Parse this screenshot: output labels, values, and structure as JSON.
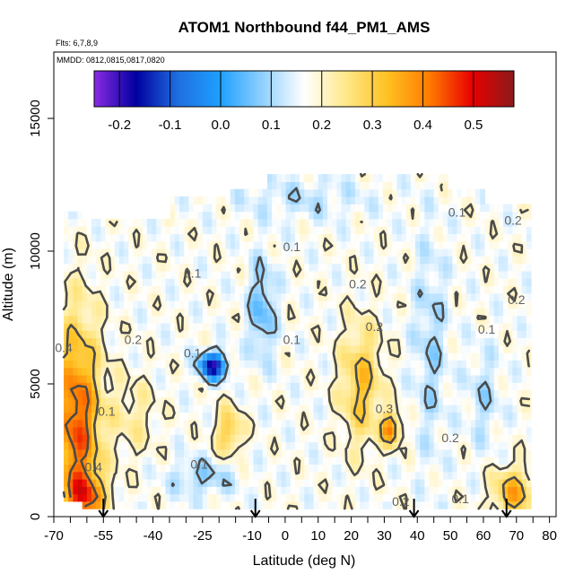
{
  "chart_data": {
    "type": "heatmap",
    "title": "ATOM1 Northbound f44_PM1_AMS",
    "flights_note": "Flts: 6,7,8,9",
    "dates_note": "MMDD: 0812,0815,0817,0820",
    "xlabel": "Latitude (deg N)",
    "ylabel": "Altitude (m)",
    "xlim": [
      -70,
      82
    ],
    "ylim": [
      0,
      17500
    ],
    "x_ticks": [
      "-70",
      "-55",
      "-40",
      "-25",
      "-10",
      "0",
      "10",
      "20",
      "30",
      "40",
      "50",
      "60",
      "70",
      "80"
    ],
    "x_tick_values": [
      -70,
      -55,
      -40,
      -25,
      -10,
      0,
      10,
      20,
      30,
      40,
      50,
      60,
      70,
      80
    ],
    "y_ticks": [
      "0",
      "5000",
      "10000",
      "15000"
    ],
    "y_tick_values": [
      0,
      5000,
      10000,
      15000
    ],
    "colorbar": {
      "ticks": [
        "-0.2",
        "-0.1",
        "0.0",
        "0.1",
        "0.2",
        "0.3",
        "0.4",
        "0.5"
      ],
      "tick_values": [
        -0.2,
        -0.1,
        0.0,
        0.1,
        0.2,
        0.3,
        0.4,
        0.5
      ],
      "range": [
        -0.25,
        0.58
      ],
      "colors": [
        "#8a2be2",
        "#0000a0",
        "#1f6fe0",
        "#1ea0ff",
        "#8fd0ff",
        "#ffffff",
        "#ffe88a",
        "#ffc020",
        "#ff7a00",
        "#e80000",
        "#8b1a1a"
      ]
    },
    "contour_levels": [
      0.1,
      0.2,
      0.3,
      0.4
    ],
    "contour_labels": [
      {
        "text": "0.4",
        "x": -67,
        "y": 6200
      },
      {
        "text": "0.2",
        "x": -46,
        "y": 6500
      },
      {
        "text": "0.1",
        "x": -28,
        "y": 9000
      },
      {
        "text": "0.1",
        "x": -28,
        "y": 6000
      },
      {
        "text": "0.1",
        "x": 2,
        "y": 10000
      },
      {
        "text": "0.1",
        "x": 2,
        "y": 6500
      },
      {
        "text": "0.2",
        "x": 27,
        "y": 7000
      },
      {
        "text": "0.2",
        "x": 22,
        "y": 8600
      },
      {
        "text": "0.3",
        "x": 30,
        "y": 3900
      },
      {
        "text": "0.1",
        "x": 52,
        "y": 11300
      },
      {
        "text": "0.2",
        "x": 69,
        "y": 11000
      },
      {
        "text": "0.2",
        "x": 70,
        "y": 8000
      },
      {
        "text": "0.1",
        "x": 61,
        "y": 6900
      },
      {
        "text": "0.2",
        "x": 50,
        "y": 2800
      },
      {
        "text": "0.2",
        "x": 35,
        "y": 400
      },
      {
        "text": "0.1",
        "x": 53,
        "y": 500
      },
      {
        "text": "0.4",
        "x": -58,
        "y": 1700
      },
      {
        "text": "0.1",
        "x": -26,
        "y": 1800
      },
      {
        "text": "0.1",
        "x": -54,
        "y": 3800
      }
    ],
    "flight_markers_lat": [
      -55,
      -9,
      39,
      67
    ],
    "grid": false
  }
}
